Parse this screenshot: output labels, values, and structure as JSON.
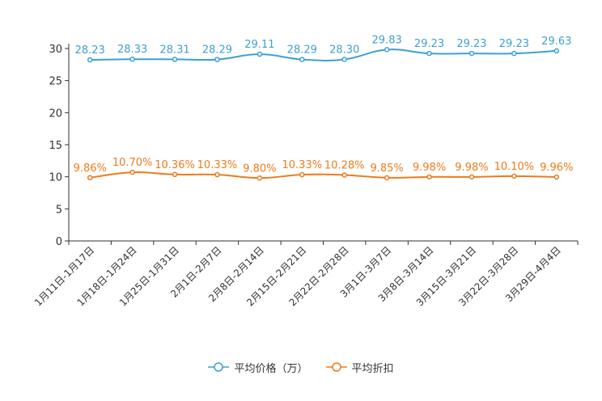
{
  "chart_data": {
    "type": "line",
    "title": "",
    "xlabel": "",
    "ylabel": "",
    "ylim": [
      0,
      30
    ],
    "yticks": [
      0,
      5,
      10,
      15,
      20,
      25,
      30
    ],
    "categories": [
      "1月11日-1月17日",
      "1月18日-1月24日",
      "1月25日-1月31日",
      "2月1日-2月7日",
      "2月8日-2月14日",
      "2月15日-2月21日",
      "2月22日-2月28日",
      "3月1日-3月7日",
      "3月8日-3月14日",
      "3月15日-3月21日",
      "3月22日-3月28日",
      "3月29日-4月4日"
    ],
    "series": [
      {
        "name": "平均价格（万）",
        "color": "#3fa0d0",
        "values": [
          28.23,
          28.33,
          28.31,
          28.29,
          29.11,
          28.29,
          28.3,
          29.83,
          29.23,
          29.23,
          29.23,
          29.63
        ],
        "labels": [
          "28.23",
          "28.33",
          "28.31",
          "28.29",
          "29.11",
          "28.29",
          "28.30",
          "29.83",
          "29.23",
          "29.23",
          "29.23",
          "29.63"
        ]
      },
      {
        "name": "平均折扣",
        "color": "#f07a1a",
        "values": [
          9.86,
          10.7,
          10.36,
          10.33,
          9.8,
          10.33,
          10.28,
          9.85,
          9.98,
          9.98,
          10.1,
          9.96
        ],
        "labels": [
          "9.86%",
          "10.70%",
          "10.36%",
          "10.33%",
          "9.80%",
          "10.33%",
          "10.28%",
          "9.85%",
          "9.98%",
          "9.98%",
          "10.10%",
          "9.96%"
        ]
      }
    ],
    "legend_position": "bottom-center",
    "grid": false
  },
  "legend": {
    "items": [
      {
        "label": "平均价格（万）",
        "color": "#3fa0d0"
      },
      {
        "label": "平均折扣",
        "color": "#f07a1a"
      }
    ]
  }
}
